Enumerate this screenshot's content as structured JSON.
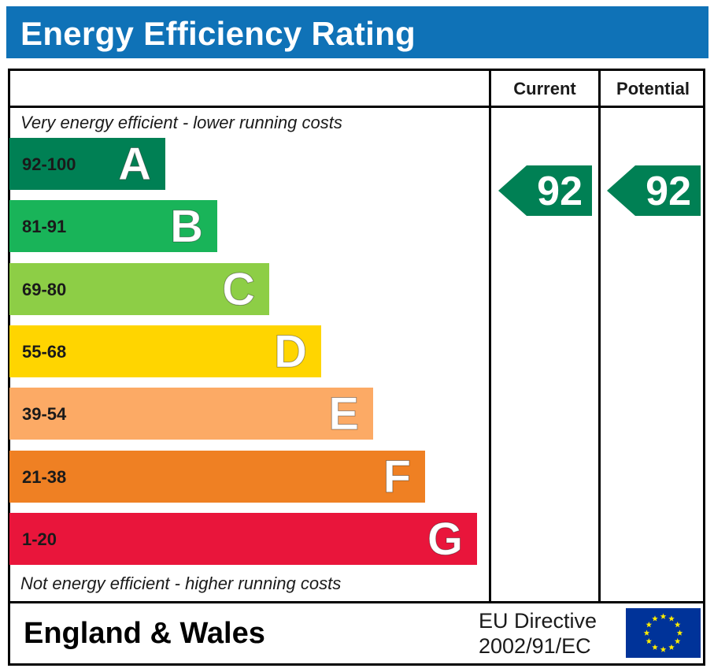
{
  "title": "Energy Efficiency Rating",
  "columns": {
    "current": "Current",
    "potential": "Potential"
  },
  "captions": {
    "top": "Very energy efficient - lower running costs",
    "bottom": "Not energy efficient - higher running costs"
  },
  "chart_data": {
    "type": "bar",
    "title": "Energy Efficiency Rating",
    "categories": [
      "A",
      "B",
      "C",
      "D",
      "E",
      "F",
      "G"
    ],
    "bands": [
      {
        "letter": "A",
        "range": "92-100",
        "color": "#008054",
        "text_color": "#1a1a1a"
      },
      {
        "letter": "B",
        "range": "81-91",
        "color": "#19b459",
        "text_color": "#1a1a1a"
      },
      {
        "letter": "C",
        "range": "69-80",
        "color": "#8dce46",
        "text_color": "#1a1a1a"
      },
      {
        "letter": "D",
        "range": "55-68",
        "color": "#ffd500",
        "text_color": "#1a1a1a"
      },
      {
        "letter": "E",
        "range": "39-54",
        "color": "#fcaa65",
        "text_color": "#1a1a1a"
      },
      {
        "letter": "F",
        "range": "21-38",
        "color": "#ef8023",
        "text_color": "#1a1a1a"
      },
      {
        "letter": "G",
        "range": "1-20",
        "color": "#e9153b",
        "text_color": "#1a1a1a"
      }
    ],
    "current": {
      "value": 92,
      "band": "A",
      "color": "#008054"
    },
    "potential": {
      "value": 92,
      "band": "A",
      "color": "#008054"
    }
  },
  "footer": {
    "region": "England & Wales",
    "directive_line1": "EU Directive",
    "directive_line2": "2002/91/EC",
    "flag": "eu-flag-icon",
    "flag_color": "#003399",
    "star_color": "#ffed00"
  }
}
